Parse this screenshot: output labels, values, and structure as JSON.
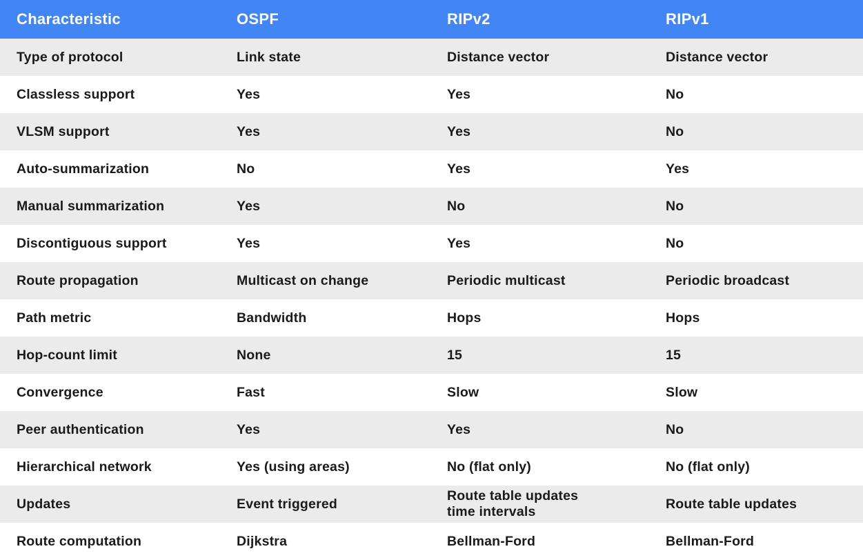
{
  "colors": {
    "header_background": "#4285f4",
    "header_text": "#fdfdfd",
    "row_alt_background": "#ebebeb",
    "row_background": "#ffffff",
    "body_text": "#1a1a1a"
  },
  "table": {
    "columns": [
      "Characteristic",
      "OSPF",
      "RIPv2",
      "RIPv1"
    ],
    "rows": [
      [
        "Type of protocol",
        "Link state",
        "Distance vector",
        "Distance vector"
      ],
      [
        "Classless support",
        "Yes",
        "Yes",
        "No"
      ],
      [
        "VLSM support",
        "Yes",
        "Yes",
        "No"
      ],
      [
        "Auto-summarization",
        "No",
        "Yes",
        "Yes"
      ],
      [
        "Manual summarization",
        "Yes",
        "No",
        "No"
      ],
      [
        "Discontiguous support",
        "Yes",
        "Yes",
        "No"
      ],
      [
        "Route propagation",
        "Multicast on change",
        "Periodic multicast",
        "Periodic broadcast"
      ],
      [
        "Path metric",
        "Bandwidth",
        "Hops",
        "Hops"
      ],
      [
        "Hop-count limit",
        "None",
        "15",
        "15"
      ],
      [
        "Convergence",
        "Fast",
        "Slow",
        "Slow"
      ],
      [
        "Peer authentication",
        "Yes",
        "Yes",
        "No"
      ],
      [
        "Hierarchical network",
        "Yes (using areas)",
        "No (flat only)",
        "No (flat only)"
      ],
      [
        "Updates",
        "Event triggered",
        "Route table updates\ntime intervals",
        "Route table updates"
      ],
      [
        "Route computation",
        "Dijkstra",
        "Bellman-Ford",
        "Bellman-Ford"
      ]
    ]
  }
}
